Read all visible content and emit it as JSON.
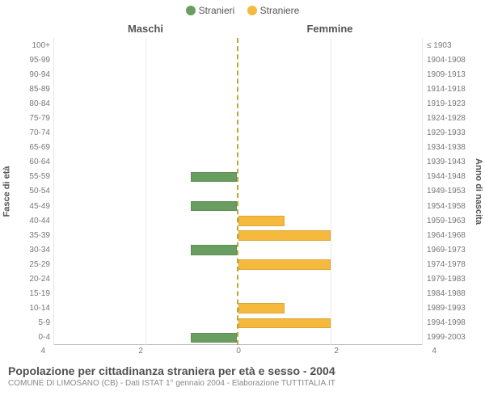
{
  "legend": {
    "male": {
      "label": "Stranieri",
      "color": "#6a9e61"
    },
    "female": {
      "label": "Straniere",
      "color": "#f5b93e"
    }
  },
  "headers": {
    "left": "Maschi",
    "right": "Femmine"
  },
  "axis_labels": {
    "left": "Fasce di età",
    "right": "Anno di nascita"
  },
  "chart": {
    "type": "pyramid-bar",
    "x_max": 4,
    "x_ticks": [
      4,
      2,
      0,
      2,
      4
    ],
    "grid_color": "#e8e8e8",
    "background_color": "#ffffff",
    "center_line_color": "#b8a838",
    "age_bands": [
      "100+",
      "95-99",
      "90-94",
      "85-89",
      "80-84",
      "75-79",
      "70-74",
      "65-69",
      "60-64",
      "55-59",
      "50-54",
      "45-49",
      "40-44",
      "35-39",
      "30-34",
      "25-29",
      "20-24",
      "15-19",
      "10-14",
      "5-9",
      "0-4"
    ],
    "birth_bands": [
      "≤ 1903",
      "1904-1908",
      "1909-1913",
      "1914-1918",
      "1919-1923",
      "1924-1928",
      "1929-1933",
      "1934-1938",
      "1939-1943",
      "1944-1948",
      "1949-1953",
      "1954-1958",
      "1959-1963",
      "1964-1968",
      "1969-1973",
      "1974-1978",
      "1979-1983",
      "1984-1988",
      "1989-1993",
      "1994-1998",
      "1999-2003"
    ],
    "male_values": [
      0,
      0,
      0,
      0,
      0,
      0,
      0,
      0,
      0,
      1,
      0,
      1,
      0,
      0,
      1,
      0,
      0,
      0,
      0,
      0,
      1
    ],
    "female_values": [
      0,
      0,
      0,
      0,
      0,
      0,
      0,
      0,
      0,
      0,
      0,
      0,
      1,
      2,
      0,
      2,
      0,
      0,
      1,
      2,
      0
    ],
    "male_color": "#6a9e61",
    "female_color": "#f5b93e",
    "label_fontsize": 10,
    "tick_fontsize": 10,
    "header_fontsize": 13
  },
  "footer": {
    "title": "Popolazione per cittadinanza straniera per età e sesso - 2004",
    "subtitle": "COMUNE DI LIMOSANO (CB) - Dati ISTAT 1° gennaio 2004 - Elaborazione TUTTITALIA.IT"
  }
}
